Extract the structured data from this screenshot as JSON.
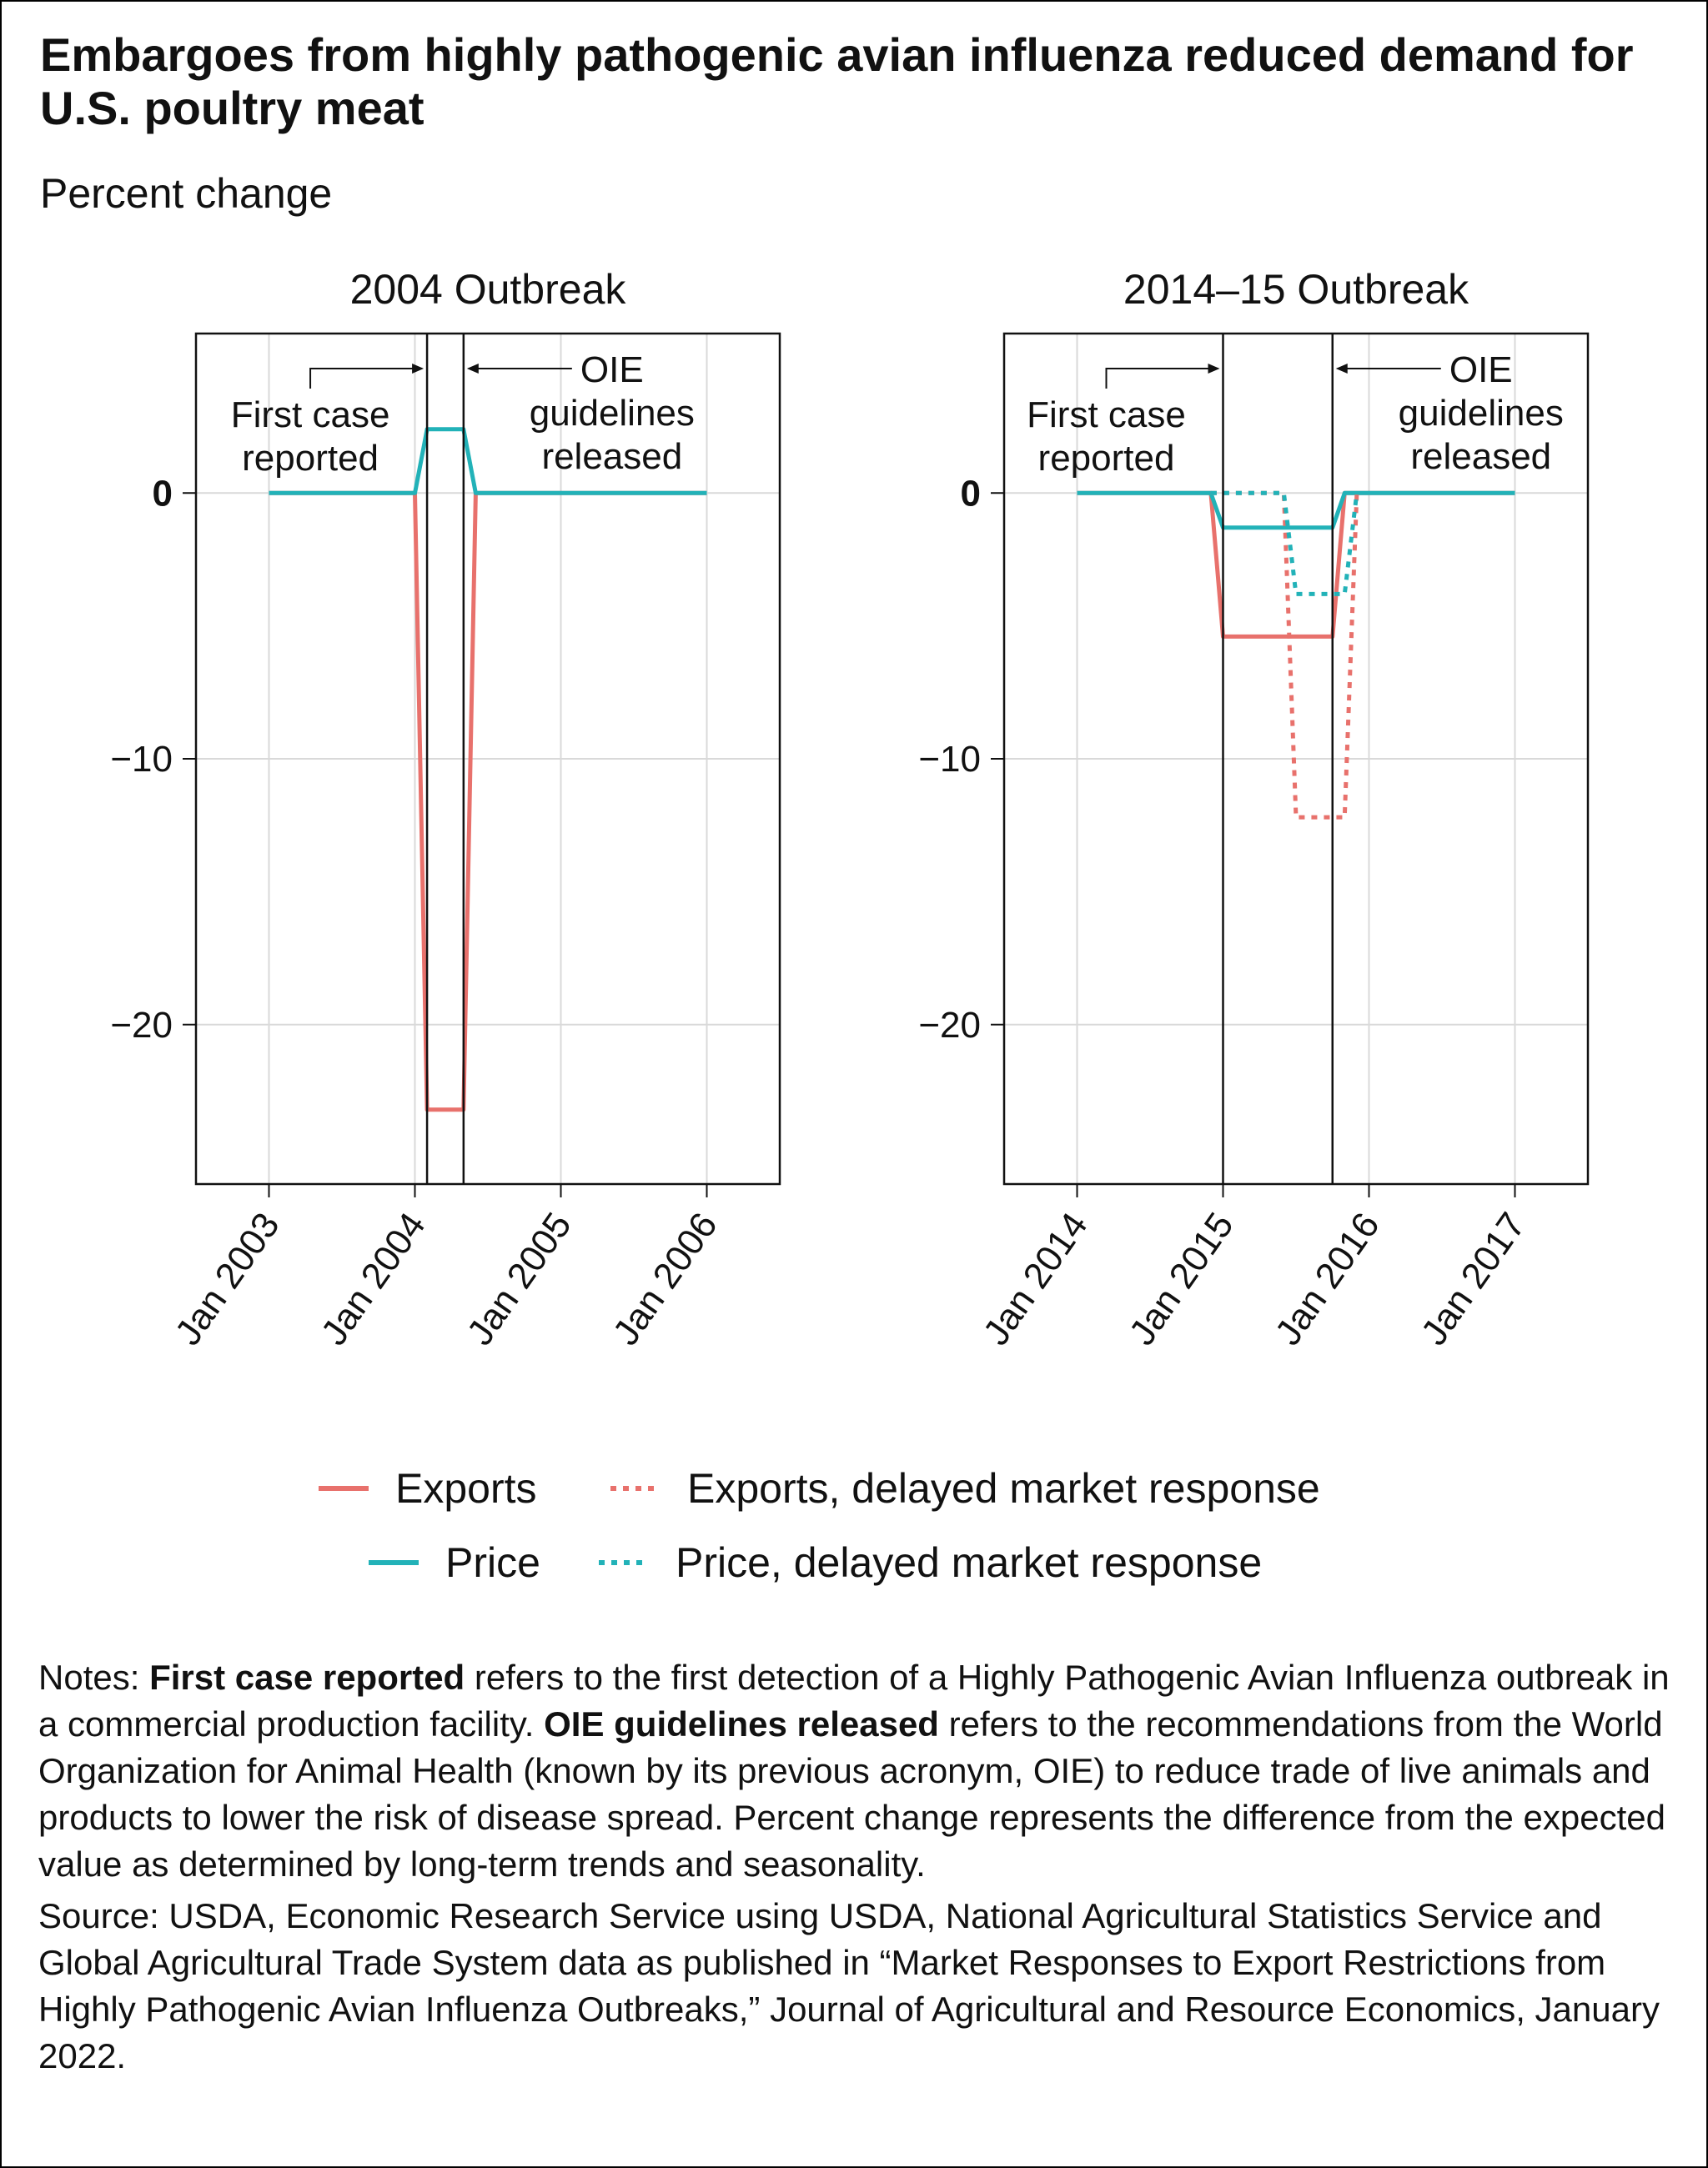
{
  "title": "Embargoes from highly pathogenic avian influenza reduced demand for U.S. poultry meat",
  "y_axis_label": "Percent change",
  "legend": [
    {
      "label": "Exports",
      "color": "#e8716c",
      "style": "solid"
    },
    {
      "label": "Exports, delayed market response",
      "color": "#e8716c",
      "style": "dotted"
    },
    {
      "label": "Price",
      "color": "#22b2b8",
      "style": "solid"
    },
    {
      "label": "Price, delayed market response",
      "color": "#22b2b8",
      "style": "dotted"
    }
  ],
  "notes": {
    "prefix": "Notes: ",
    "term1": "First case reported",
    "text1": " refers to the first detection of a Highly Pathogenic Avian Influenza outbreak in a commercial production facility. ",
    "term2": "OIE guidelines released",
    "text2": " refers to the recommendations from the World Organization for Animal Health (known by its previous acronym, OIE) to reduce trade of live animals and products to lower the risk of disease spread. Percent change represents the difference from the expected value as determined by long-term trends and seasonality.",
    "source": "Source: USDA, Economic Research Service using USDA, National Agricultural Statistics Service and Global Agricultural Trade System data as published in “Market Responses to Export Restrictions from Highly Pathogenic Avian Influenza Outbreaks,” Journal of Agricultural and Resource Economics, January 2022."
  },
  "chart_data": [
    {
      "type": "line",
      "title": "2004 Outbreak",
      "ylabel": "Percent change",
      "ylim": [
        -26,
        6
      ],
      "yticks": [
        0,
        -10,
        -20
      ],
      "ytick_labels": [
        "0",
        "−10",
        "−20"
      ],
      "xlim": [
        "2002-07",
        "2006-07"
      ],
      "xticks": [
        "2003-01",
        "2004-01",
        "2005-01",
        "2006-01"
      ],
      "xtick_labels": [
        "Jan 2003",
        "Jan 2004",
        "Jan 2005",
        "Jan 2006"
      ],
      "grid": true,
      "events": [
        {
          "label": "First case reported",
          "date": "2004-02",
          "arrow": "from-left"
        },
        {
          "label": "OIE guidelines released",
          "date": "2004-05",
          "arrow": "from-right"
        }
      ],
      "series": [
        {
          "name": "Exports",
          "color": "#e8716c",
          "style": "solid",
          "x": [
            "2003-01",
            "2004-01",
            "2004-02",
            "2004-05",
            "2004-06",
            "2006-01"
          ],
          "y": [
            0,
            0,
            -23.2,
            -23.2,
            0,
            0
          ]
        },
        {
          "name": "Price",
          "color": "#22b2b8",
          "style": "solid",
          "x": [
            "2003-01",
            "2004-01",
            "2004-02",
            "2004-05",
            "2004-06",
            "2006-01"
          ],
          "y": [
            0,
            0,
            2.4,
            2.4,
            0,
            0
          ]
        }
      ]
    },
    {
      "type": "line",
      "title": "2014–15 Outbreak",
      "ylabel": "Percent change",
      "ylim": [
        -26,
        6
      ],
      "yticks": [
        0,
        -10,
        -20
      ],
      "ytick_labels": [
        "0",
        "−10",
        "−20"
      ],
      "xlim": [
        "2013-07",
        "2017-07"
      ],
      "xticks": [
        "2014-01",
        "2015-01",
        "2016-01",
        "2017-01"
      ],
      "xtick_labels": [
        "Jan 2014",
        "Jan 2015",
        "Jan 2016",
        "Jan 2017"
      ],
      "grid": true,
      "events": [
        {
          "label": "First case reported",
          "date": "2015-01",
          "arrow": "from-left"
        },
        {
          "label": "OIE guidelines released",
          "date": "2015-10",
          "arrow": "from-right"
        }
      ],
      "series": [
        {
          "name": "Exports",
          "color": "#e8716c",
          "style": "solid",
          "x": [
            "2014-01",
            "2014-12",
            "2015-01",
            "2015-10",
            "2015-11",
            "2017-01"
          ],
          "y": [
            0,
            0,
            -5.4,
            -5.4,
            0,
            0
          ]
        },
        {
          "name": "Price",
          "color": "#22b2b8",
          "style": "solid",
          "x": [
            "2014-01",
            "2014-12",
            "2015-01",
            "2015-10",
            "2015-11",
            "2017-01"
          ],
          "y": [
            0,
            0,
            -1.3,
            -1.3,
            0,
            0
          ]
        },
        {
          "name": "Exports, delayed market response",
          "color": "#e8716c",
          "style": "dotted",
          "x": [
            "2014-12",
            "2015-06",
            "2015-07",
            "2015-11",
            "2015-12"
          ],
          "y": [
            0,
            0,
            -12.2,
            -12.2,
            0
          ]
        },
        {
          "name": "Price, delayed market response",
          "color": "#22b2b8",
          "style": "dotted",
          "x": [
            "2014-12",
            "2015-06",
            "2015-07",
            "2015-11",
            "2015-12"
          ],
          "y": [
            0,
            0,
            -3.8,
            -3.8,
            0
          ]
        }
      ]
    }
  ]
}
